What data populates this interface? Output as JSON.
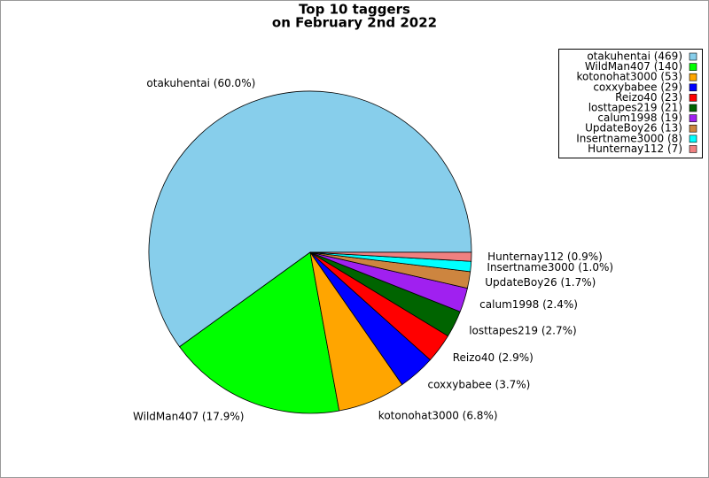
{
  "chart_data": {
    "type": "pie",
    "title": [
      "Top 10 taggers",
      "on February 2nd 2022"
    ],
    "categories": [
      "otakuhentai",
      "WildMan407",
      "kotonohat3000",
      "coxxybabee",
      "Reizo40",
      "losttapes219",
      "calum1998",
      "UpdateBoy26",
      "Insertname3000",
      "Hunternay112"
    ],
    "counts": [
      469,
      140,
      53,
      29,
      23,
      21,
      19,
      13,
      8,
      7
    ],
    "count_labels": [
      "otakuhentai (469)",
      "WildMan407 (140)",
      "kotonohat3000 (53)",
      "coxxybabee (29)",
      "Reizo40 (23)",
      "losttapes219 (21)",
      "calum1998 (19)",
      "UpdateBoy26 (13)",
      "Insertname3000 (8)",
      "Hunternay112 (7)"
    ],
    "values": [
      60.0,
      17.9,
      6.8,
      3.7,
      2.9,
      2.7,
      2.4,
      1.7,
      1.0,
      0.9
    ],
    "value_labels": [
      "otakuhentai (60.0%)",
      "WildMan407 (17.9%)",
      "kotonohat3000 (6.8%)",
      "coxxybabee (3.7%)",
      "Reizo40 (2.9%)",
      "losttapes219 (2.7%)",
      "calum1998 (2.4%)",
      "UpdateBoy26 (1.7%)",
      "Insertname3000 (1.0%)",
      "Hunternay112 (0.9%)"
    ],
    "colors": [
      "#87ceeb",
      "#00ff00",
      "#ffa500",
      "#0000ff",
      "#ff0000",
      "#006400",
      "#a020f0",
      "#cd853f",
      "#00ffff",
      "#f08080"
    ],
    "legend": "upper right"
  }
}
